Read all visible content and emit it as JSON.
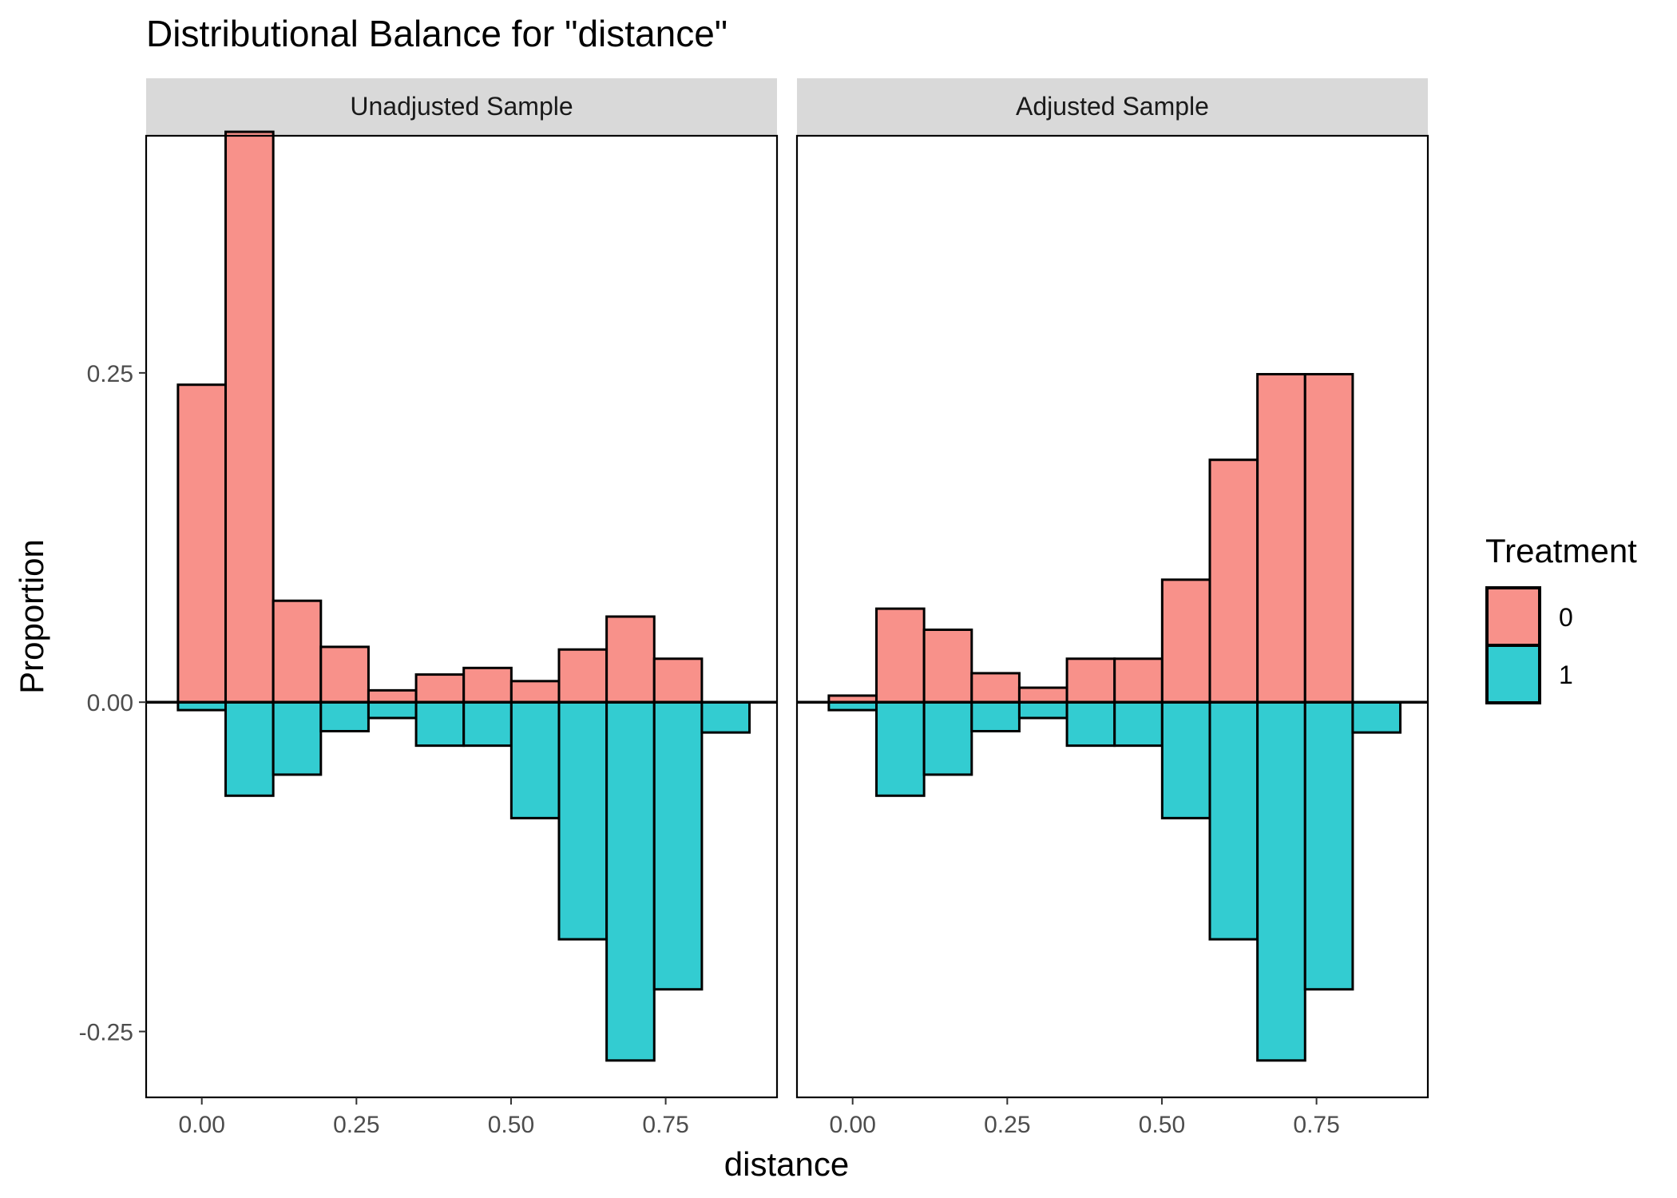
{
  "chart_data": {
    "type": "bar",
    "title": "Distributional Balance for \"distance\"",
    "xlabel": "distance",
    "ylabel": "Proportion",
    "ylim": [
      -0.3,
      0.43
    ],
    "xlim": [
      -0.09,
      0.93
    ],
    "yticks": [
      -0.25,
      0.0,
      0.25
    ],
    "ytick_labels": [
      "-0.25",
      "0.00",
      "0.25"
    ],
    "xticks": [
      0.0,
      0.25,
      0.5,
      0.75
    ],
    "xtick_labels": [
      "0.00",
      "0.25",
      "0.50",
      "0.75"
    ],
    "bin_width": 0.077,
    "bin_centers": [
      0.0,
      0.077,
      0.154,
      0.231,
      0.308,
      0.385,
      0.462,
      0.539,
      0.616,
      0.693,
      0.77,
      0.847
    ],
    "grid": false,
    "legend": {
      "title": "Treatment",
      "position": "right",
      "entries": [
        {
          "label": "0",
          "color": "#F8918A"
        },
        {
          "label": "1",
          "color": "#33CCD1"
        }
      ]
    },
    "series_colors": {
      "0": "#F8918A",
      "1": "#33CCD1"
    },
    "panels": [
      {
        "label": "Unadjusted Sample",
        "series": [
          {
            "name": "0",
            "values": [
              0.241,
              0.433,
              0.077,
              0.042,
              0.009,
              0.021,
              0.026,
              0.016,
              0.04,
              0.065,
              0.033,
              0.0
            ]
          },
          {
            "name": "1",
            "values": [
              -0.006,
              -0.071,
              -0.055,
              -0.022,
              -0.012,
              -0.033,
              -0.033,
              -0.088,
              -0.18,
              -0.272,
              -0.218,
              -0.023
            ]
          }
        ]
      },
      {
        "label": "Adjusted Sample",
        "series": [
          {
            "name": "0",
            "values": [
              0.005,
              0.071,
              0.055,
              0.022,
              0.011,
              0.033,
              0.033,
              0.093,
              0.184,
              0.249,
              0.249,
              0.0
            ]
          },
          {
            "name": "1",
            "values": [
              -0.006,
              -0.071,
              -0.055,
              -0.022,
              -0.012,
              -0.033,
              -0.033,
              -0.088,
              -0.18,
              -0.272,
              -0.218,
              -0.023
            ]
          }
        ]
      }
    ]
  }
}
